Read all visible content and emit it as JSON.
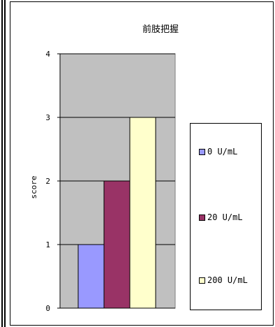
{
  "chart_data": {
    "type": "bar",
    "title": "前肢把握",
    "ylabel": "score",
    "xlabel": "",
    "categories": [
      ""
    ],
    "series": [
      {
        "name": "0 U/mL",
        "values": [
          1
        ],
        "color": "#9999ff"
      },
      {
        "name": "20 U/mL",
        "values": [
          2
        ],
        "color": "#993366"
      },
      {
        "name": "200 U/mL",
        "values": [
          3
        ],
        "color": "#ffffcc"
      }
    ],
    "ylim": [
      0,
      4
    ],
    "yticks": [
      "0",
      "1",
      "2",
      "3",
      "4"
    ],
    "grid": true,
    "plot_background": "#c0c0c0",
    "legend_position": "right"
  }
}
